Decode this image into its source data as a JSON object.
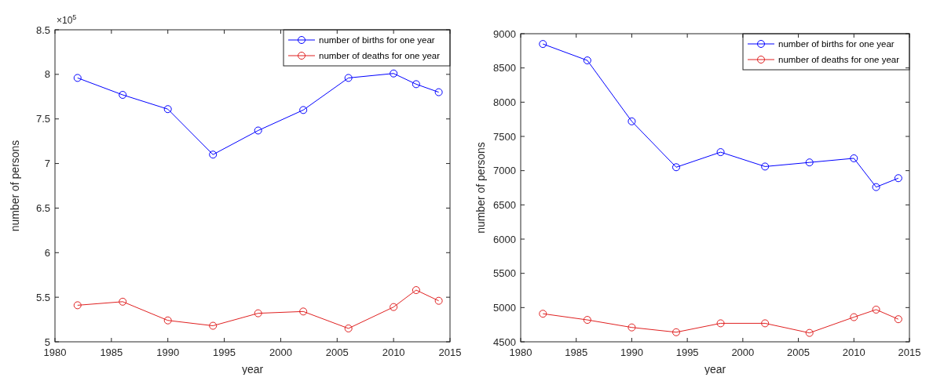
{
  "chart_data": [
    {
      "type": "line",
      "xlabel": "year",
      "ylabel": "number of persons",
      "annotations": [
        "×10$^{5}$"
      ],
      "x": [
        1982,
        1986,
        1990,
        1994,
        1998,
        2002,
        2006,
        2010,
        2012,
        2014
      ],
      "series": [
        {
          "name": "number of births for one year",
          "color": "#0000ff",
          "values": [
            7.96,
            7.77,
            7.61,
            7.1,
            7.37,
            7.6,
            7.96,
            8.01,
            7.89,
            7.8
          ]
        },
        {
          "name": "number of deaths for one year",
          "color": "#e02020",
          "values": [
            5.41,
            5.45,
            5.24,
            5.18,
            5.32,
            5.34,
            5.15,
            5.39,
            5.58,
            5.46
          ]
        }
      ],
      "xlim": [
        1980,
        2015
      ],
      "xticks": [
        1980,
        1985,
        1990,
        1995,
        2000,
        2005,
        2010,
        2015
      ],
      "ylim": [
        5,
        8.5
      ],
      "yticks": [
        5,
        5.5,
        6,
        6.5,
        7,
        7.5,
        8,
        8.5
      ],
      "legend": "top right",
      "marker": "circle",
      "line_style": "solid",
      "grid": false
    },
    {
      "type": "line",
      "xlabel": "year",
      "ylabel": "number of persons",
      "x": [
        1982,
        1986,
        1990,
        1994,
        1998,
        2002,
        2006,
        2010,
        2012,
        2014
      ],
      "series": [
        {
          "name": "number of births for one year",
          "color": "#0000ff",
          "values": [
            8850,
            8610,
            7720,
            7050,
            7270,
            7060,
            7120,
            7180,
            6760,
            6890
          ]
        },
        {
          "name": "number of deaths for one year",
          "color": "#e02020",
          "values": [
            4910,
            4820,
            4710,
            4640,
            4770,
            4770,
            4630,
            4860,
            4970,
            4830
          ]
        }
      ],
      "xlim": [
        1980,
        2015
      ],
      "xticks": [
        1980,
        1985,
        1990,
        1995,
        2000,
        2005,
        2010,
        2015
      ],
      "ylim": [
        4500,
        9000
      ],
      "yticks": [
        4500,
        5000,
        5500,
        6000,
        6500,
        7000,
        7500,
        8000,
        8500,
        9000
      ],
      "legend": "top right",
      "marker": "circle",
      "line_style": "solid",
      "grid": false
    }
  ]
}
